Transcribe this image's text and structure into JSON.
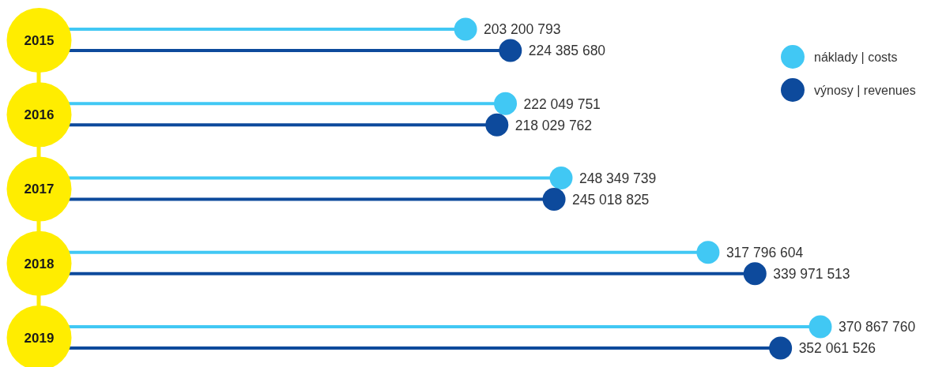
{
  "chart_data": {
    "type": "lollipop",
    "orientation": "horizontal",
    "categories": [
      "2015",
      "2016",
      "2017",
      "2018",
      "2019"
    ],
    "series": [
      {
        "name": "náklady | costs",
        "color": "#41c8f4",
        "values": [
          203200793,
          222049751,
          248349739,
          317796604,
          370867760
        ]
      },
      {
        "name": "výnosy | revenues",
        "color": "#0d4a9c",
        "values": [
          224385680,
          218029762,
          245018825,
          339971513,
          352061526
        ]
      }
    ],
    "data_labels": true,
    "legend": "top right",
    "marker": "circle",
    "tick_labels": "y"
  }
}
